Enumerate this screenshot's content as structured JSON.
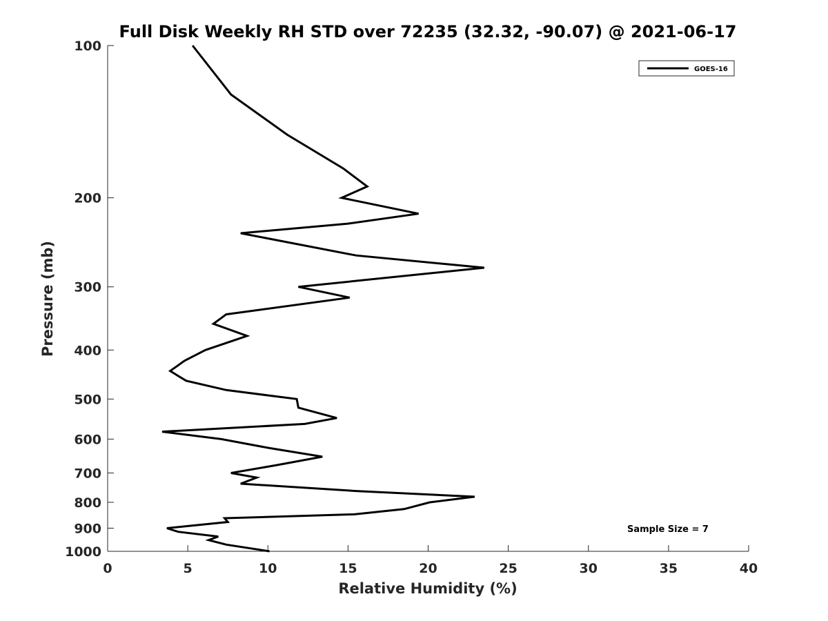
{
  "chart_data": {
    "type": "line",
    "title": "Full Disk Weekly RH STD over 72235 (32.32, -90.07) @ 2021-06-17",
    "xlabel": "Relative Humidity (%)",
    "ylabel": "Pressure (mb)",
    "xlim": [
      0,
      40
    ],
    "ylim": [
      100,
      1000
    ],
    "y_scale": "log",
    "y_reversed": true,
    "x_ticks": [
      0,
      5,
      10,
      15,
      20,
      25,
      30,
      35,
      40
    ],
    "y_ticks": [
      100,
      200,
      300,
      400,
      500,
      600,
      700,
      800,
      900,
      1000
    ],
    "legend": {
      "position": "top-right",
      "entries": [
        "GOES-16"
      ]
    },
    "annotation": "Sample Size = 7",
    "series": [
      {
        "name": "GOES-16",
        "color": "#000000",
        "points": [
          [
            5.3,
            100
          ],
          [
            7.7,
            125
          ],
          [
            11.2,
            150
          ],
          [
            14.7,
            175
          ],
          [
            16.2,
            190
          ],
          [
            14.6,
            200
          ],
          [
            19.4,
            215
          ],
          [
            15.0,
            225
          ],
          [
            8.3,
            235
          ],
          [
            15.5,
            260
          ],
          [
            23.5,
            275
          ],
          [
            11.9,
            300
          ],
          [
            15.1,
            315
          ],
          [
            7.4,
            340
          ],
          [
            6.6,
            355
          ],
          [
            8.7,
            375
          ],
          [
            6.1,
            400
          ],
          [
            4.8,
            420
          ],
          [
            3.9,
            440
          ],
          [
            4.9,
            460
          ],
          [
            7.4,
            480
          ],
          [
            11.8,
            500
          ],
          [
            11.9,
            520
          ],
          [
            14.3,
            545
          ],
          [
            12.3,
            560
          ],
          [
            3.4,
            580
          ],
          [
            7.1,
            600
          ],
          [
            10.1,
            625
          ],
          [
            13.4,
            650
          ],
          [
            10.6,
            675
          ],
          [
            7.7,
            700
          ],
          [
            9.3,
            715
          ],
          [
            8.3,
            735
          ],
          [
            15.5,
            760
          ],
          [
            22.9,
            780
          ],
          [
            20.1,
            800
          ],
          [
            18.5,
            825
          ],
          [
            15.4,
            845
          ],
          [
            7.3,
            860
          ],
          [
            7.5,
            875
          ],
          [
            3.7,
            900
          ],
          [
            4.4,
            915
          ],
          [
            6.9,
            935
          ],
          [
            6.3,
            950
          ],
          [
            7.4,
            970
          ],
          [
            10.1,
            1000
          ]
        ]
      }
    ]
  }
}
